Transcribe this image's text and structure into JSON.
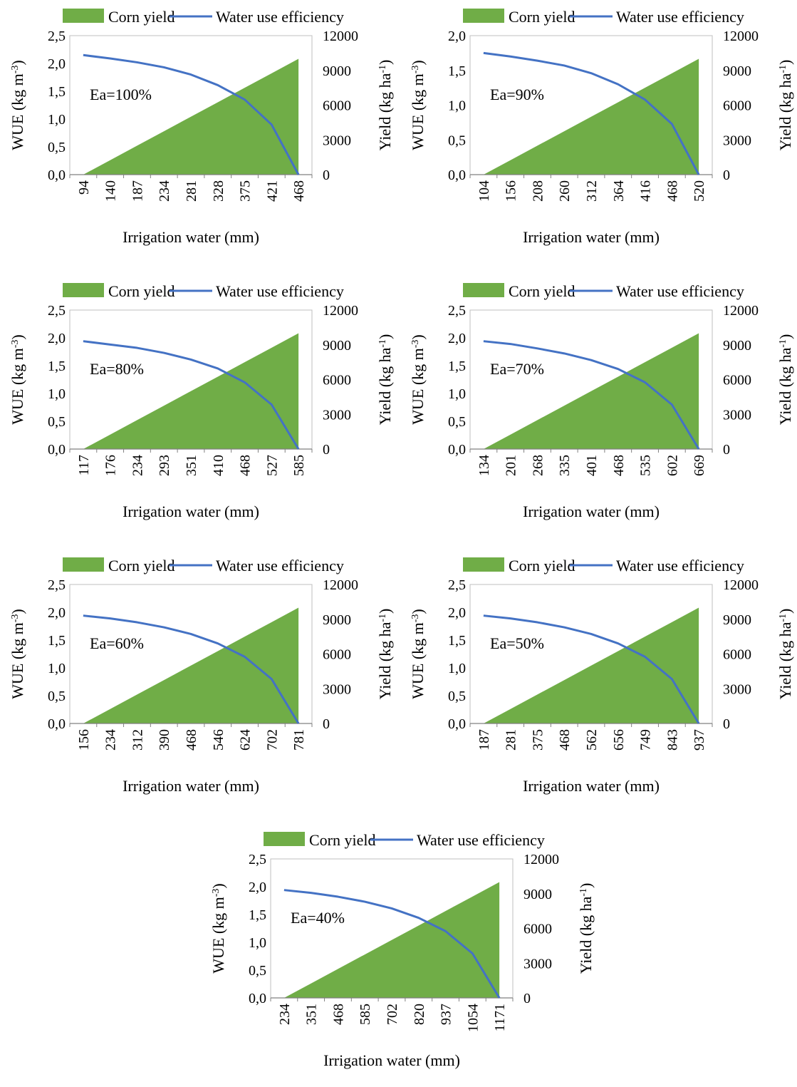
{
  "colors": {
    "yield_fill": "#70ad47",
    "wue_line": "#4472c4",
    "axis": "#000000"
  },
  "chart_data": [
    {
      "type": "area+line",
      "annotation": "Ea=100%",
      "legend": {
        "area": "Corn yield",
        "line": "Water use efficiency"
      },
      "xlabel": "Irrigation water (mm)",
      "ylabel": "WUE (kg m-3)",
      "y2label": "Yield (kg ha-1)",
      "x_ticks": [
        "94",
        "140",
        "187",
        "234",
        "281",
        "328",
        "375",
        "421",
        "468"
      ],
      "y_ticks": [
        "0,0",
        "0,5",
        "1,0",
        "1,5",
        "2,0",
        "2,5"
      ],
      "y2_ticks": [
        "0",
        "3000",
        "6000",
        "9000",
        "12000"
      ],
      "ylim": [
        0,
        2.5
      ],
      "y2lim": [
        0,
        12000
      ],
      "yield": [
        0,
        1250,
        2500,
        3750,
        5000,
        6250,
        7500,
        8750,
        10000
      ],
      "wue": [
        2.15,
        2.09,
        2.02,
        1.93,
        1.8,
        1.61,
        1.35,
        0.9,
        0.0
      ]
    },
    {
      "type": "area+line",
      "annotation": "Ea=90%",
      "legend": {
        "area": "Corn yield",
        "line": "Water use efficiency"
      },
      "xlabel": "Irrigation water (mm)",
      "ylabel": "WUE (kg m-3)",
      "y2label": "Yield (kg ha-1)",
      "x_ticks": [
        "104",
        "156",
        "208",
        "260",
        "312",
        "364",
        "416",
        "468",
        "520"
      ],
      "y_ticks": [
        "0,0",
        "0,5",
        "1,0",
        "1,5",
        "2,0"
      ],
      "y2_ticks": [
        "0",
        "3000",
        "6000",
        "9000",
        "12000"
      ],
      "ylim": [
        0,
        2.0
      ],
      "y2lim": [
        0,
        12000
      ],
      "yield": [
        0,
        1250,
        2500,
        3750,
        5000,
        6250,
        7500,
        8750,
        10000
      ],
      "wue": [
        1.75,
        1.7,
        1.64,
        1.57,
        1.46,
        1.3,
        1.08,
        0.73,
        0.0
      ]
    },
    {
      "type": "area+line",
      "annotation": "Ea=80%",
      "legend": {
        "area": "Corn yield",
        "line": "Water use efficiency"
      },
      "xlabel": "Irrigation water (mm)",
      "ylabel": "WUE (kg m-3)",
      "y2label": "Yield (kg ha-1)",
      "x_ticks": [
        "117",
        "176",
        "234",
        "293",
        "351",
        "410",
        "468",
        "527",
        "585"
      ],
      "y_ticks": [
        "0,0",
        "0,5",
        "1,0",
        "1,5",
        "2,0",
        "2,5"
      ],
      "y2_ticks": [
        "0",
        "3000",
        "6000",
        "9000",
        "12000"
      ],
      "ylim": [
        0,
        2.5
      ],
      "y2lim": [
        0,
        12000
      ],
      "yield": [
        0,
        1250,
        2500,
        3750,
        5000,
        6250,
        7500,
        8750,
        10000
      ],
      "wue": [
        1.94,
        1.88,
        1.82,
        1.73,
        1.61,
        1.45,
        1.2,
        0.8,
        0.0
      ]
    },
    {
      "type": "area+line",
      "annotation": "Ea=70%",
      "legend": {
        "area": "Corn yield",
        "line": "Water use efficiency"
      },
      "xlabel": "Irrigation water (mm)",
      "ylabel": "WUE (kg m-3)",
      "y2label": "Yield (kg ha-1)",
      "x_ticks": [
        "134",
        "201",
        "268",
        "335",
        "401",
        "468",
        "535",
        "602",
        "669"
      ],
      "y_ticks": [
        "0,0",
        "0,5",
        "1,0",
        "1,5",
        "2,0",
        "2,5"
      ],
      "y2_ticks": [
        "0",
        "3000",
        "6000",
        "9000",
        "12000"
      ],
      "ylim": [
        0,
        2.5
      ],
      "y2lim": [
        0,
        12000
      ],
      "yield": [
        0,
        1250,
        2500,
        3750,
        5000,
        6250,
        7500,
        8750,
        10000
      ],
      "wue": [
        1.94,
        1.89,
        1.81,
        1.72,
        1.6,
        1.44,
        1.2,
        0.8,
        0.0
      ]
    },
    {
      "type": "area+line",
      "annotation": "Ea=60%",
      "legend": {
        "area": "Corn yield",
        "line": "Water use efficiency"
      },
      "xlabel": "Irrigation water (mm)",
      "ylabel": "WUE (kg m-3)",
      "y2label": "Yield (kg ha-1)",
      "x_ticks": [
        "156",
        "234",
        "312",
        "390",
        "468",
        "546",
        "624",
        "702",
        "781"
      ],
      "y_ticks": [
        "0,0",
        "0,5",
        "1,0",
        "1,5",
        "2,0",
        "2,5"
      ],
      "y2_ticks": [
        "0",
        "3000",
        "6000",
        "9000",
        "12000"
      ],
      "ylim": [
        0,
        2.5
      ],
      "y2lim": [
        0,
        12000
      ],
      "yield": [
        0,
        1250,
        2500,
        3750,
        5000,
        6250,
        7500,
        8750,
        10000
      ],
      "wue": [
        1.94,
        1.89,
        1.82,
        1.73,
        1.61,
        1.44,
        1.2,
        0.8,
        0.0
      ]
    },
    {
      "type": "area+line",
      "annotation": "Ea=50%",
      "legend": {
        "area": "Corn yield",
        "line": "Water use efficiency"
      },
      "xlabel": "Irrigation water (mm)",
      "ylabel": "WUE (kg m-3)",
      "y2label": "Yield (kg ha-1)",
      "x_ticks": [
        "187",
        "281",
        "375",
        "468",
        "562",
        "656",
        "749",
        "843",
        "937"
      ],
      "y_ticks": [
        "0,0",
        "0,5",
        "1,0",
        "1,5",
        "2,0",
        "2,5"
      ],
      "y2_ticks": [
        "0",
        "3000",
        "6000",
        "9000",
        "12000"
      ],
      "ylim": [
        0,
        2.5
      ],
      "y2lim": [
        0,
        12000
      ],
      "yield": [
        0,
        1250,
        2500,
        3750,
        5000,
        6250,
        7500,
        8750,
        10000
      ],
      "wue": [
        1.94,
        1.89,
        1.82,
        1.73,
        1.61,
        1.44,
        1.2,
        0.8,
        0.0
      ]
    },
    {
      "type": "area+line",
      "annotation": "Ea=40%",
      "legend": {
        "area": "Corn yield",
        "line": "Water use efficiency"
      },
      "xlabel": "Irrigation water (mm)",
      "ylabel": "WUE (kg m-3)",
      "y2label": "Yield (kg ha-1)",
      "x_ticks": [
        "234",
        "351",
        "468",
        "585",
        "702",
        "820",
        "937",
        "1054",
        "1171"
      ],
      "y_ticks": [
        "0,0",
        "0,5",
        "1,0",
        "1,5",
        "2,0",
        "2,5"
      ],
      "y2_ticks": [
        "0",
        "3000",
        "6000",
        "9000",
        "12000"
      ],
      "ylim": [
        0,
        2.5
      ],
      "y2lim": [
        0,
        12000
      ],
      "yield": [
        0,
        1250,
        2500,
        3750,
        5000,
        6250,
        7500,
        8750,
        10000
      ],
      "wue": [
        1.94,
        1.89,
        1.82,
        1.73,
        1.61,
        1.44,
        1.2,
        0.8,
        0.0
      ]
    }
  ]
}
